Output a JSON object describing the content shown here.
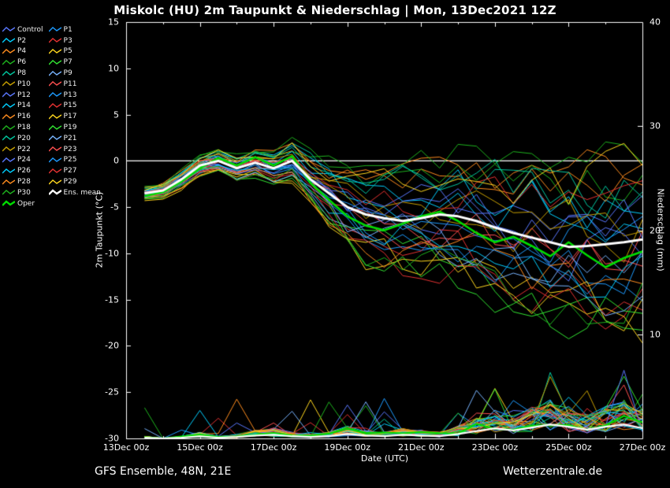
{
  "title": "Miskolc  (HU)  2m Taupunkt & Niederschlag | Mon, 13Dec2021 12Z",
  "footer": {
    "left": "GFS Ensemble, 48N, 21E",
    "right": "Wetterzentrale.de"
  },
  "chart_data": {
    "type": "line",
    "xlabel": "Date (UTC)",
    "ylabel_left": "2m Taupunkt (°C)",
    "ylabel_right": "Niederschlag (mm)",
    "ylim_left": [
      -30,
      15
    ],
    "yticks_left": [
      15,
      10,
      5,
      0,
      -5,
      -10,
      -15,
      -20,
      -25,
      -30
    ],
    "ylim_right": [
      0,
      40
    ],
    "yticks_right": [
      40,
      30,
      20,
      10
    ],
    "zero_line": 0,
    "x_range_hours": [
      0,
      336
    ],
    "x_ticks": [
      {
        "hour": 0,
        "label": "13Dec 00z"
      },
      {
        "hour": 48,
        "label": "15Dec 00z"
      },
      {
        "hour": 96,
        "label": "17Dec 00z"
      },
      {
        "hour": 144,
        "label": "19Dec 00z"
      },
      {
        "hour": 192,
        "label": "21Dec 00z"
      },
      {
        "hour": 240,
        "label": "23Dec 00z"
      },
      {
        "hour": 288,
        "label": "25Dec 00z"
      },
      {
        "hour": 336,
        "label": "27Dec 00z"
      }
    ],
    "x_hours": [
      12,
      24,
      36,
      48,
      60,
      72,
      84,
      96,
      108,
      120,
      132,
      144,
      156,
      168,
      180,
      192,
      204,
      216,
      228,
      240,
      252,
      264,
      276,
      288,
      300,
      312,
      324,
      336
    ],
    "series": {
      "ens_mean": {
        "label": "Ens. mean",
        "color": "#ffffff",
        "temp": [
          -3.5,
          -3.2,
          -2.0,
          -0.5,
          0.0,
          -0.8,
          -0.2,
          -0.8,
          0.0,
          -2.0,
          -3.5,
          -5.0,
          -5.8,
          -6.2,
          -6.5,
          -6.2,
          -5.8,
          -6.0,
          -6.5,
          -7.2,
          -7.8,
          -8.3,
          -8.8,
          -9.3,
          -9.2,
          -9.0,
          -8.8,
          -8.5
        ]
      },
      "oper": {
        "label": "Oper",
        "color": "#00dc00",
        "temp": [
          -3.8,
          -3.4,
          -2.2,
          -0.8,
          0.3,
          -0.5,
          0.4,
          -0.5,
          0.5,
          -2.4,
          -4.2,
          -6.0,
          -7.0,
          -7.5,
          -6.8,
          -6.0,
          -5.5,
          -6.5,
          -7.8,
          -8.8,
          -8.2,
          -9.2,
          -10.3,
          -8.8,
          -10.2,
          -11.5,
          -10.5,
          -9.8
        ]
      },
      "members": [
        {
          "name": "Control",
          "color": "#5a78ff",
          "dev": 0.1
        },
        {
          "name": "P1",
          "color": "#1e9bff",
          "dev": -0.3
        },
        {
          "name": "P2",
          "color": "#00cfff",
          "dev": 0.5
        },
        {
          "name": "P3",
          "color": "#e63232",
          "dev": -0.7
        },
        {
          "name": "P4",
          "color": "#ff8c1e",
          "dev": 0.9
        },
        {
          "name": "P5",
          "color": "#ffd71e",
          "dev": -1.1
        },
        {
          "name": "P6",
          "color": "#1eb41e",
          "dev": 1.1
        },
        {
          "name": "P7",
          "color": "#32e632",
          "dev": -0.9
        },
        {
          "name": "P8",
          "color": "#00c8a0",
          "dev": 0.7
        },
        {
          "name": "P9",
          "color": "#78b4ff",
          "dev": -0.5
        },
        {
          "name": "P10",
          "color": "#c8a000",
          "dev": 0.3
        },
        {
          "name": "P11",
          "color": "#ff5050",
          "dev": -0.1
        },
        {
          "name": "P12",
          "color": "#5a78ff",
          "dev": 0.2
        },
        {
          "name": "P13",
          "color": "#1e9bff",
          "dev": -0.4
        },
        {
          "name": "P14",
          "color": "#00cfff",
          "dev": 0.6
        },
        {
          "name": "P15",
          "color": "#e63232",
          "dev": -0.8
        },
        {
          "name": "P16",
          "color": "#ff8c1e",
          "dev": 1.0
        },
        {
          "name": "P17",
          "color": "#ffd71e",
          "dev": -1.2
        },
        {
          "name": "P18",
          "color": "#1eb41e",
          "dev": 1.2
        },
        {
          "name": "P19",
          "color": "#32e632",
          "dev": -1.0
        },
        {
          "name": "P20",
          "color": "#00c8a0",
          "dev": 0.8
        },
        {
          "name": "P21",
          "color": "#78b4ff",
          "dev": -0.6
        },
        {
          "name": "P22",
          "color": "#c8a000",
          "dev": 0.4
        },
        {
          "name": "P23",
          "color": "#ff5050",
          "dev": -0.2
        },
        {
          "name": "P24",
          "color": "#5a78ff",
          "dev": 0.0
        },
        {
          "name": "P25",
          "color": "#1e9bff",
          "dev": 0.15
        },
        {
          "name": "P26",
          "color": "#00cfff",
          "dev": -0.35
        },
        {
          "name": "P27",
          "color": "#e63232",
          "dev": 0.55
        },
        {
          "name": "P28",
          "color": "#ff8c1e",
          "dev": -0.75
        },
        {
          "name": "P29",
          "color": "#ffd71e",
          "dev": 0.95
        },
        {
          "name": "P30",
          "color": "#1eb41e",
          "dev": -0.95
        }
      ],
      "spread": [
        0.6,
        0.7,
        0.8,
        0.9,
        1.0,
        1.1,
        1.2,
        1.3,
        1.5,
        2.0,
        2.6,
        3.2,
        3.8,
        4.2,
        4.6,
        5.0,
        5.2,
        5.5,
        5.7,
        6.0,
        6.2,
        6.5,
        6.6,
        6.8,
        7.0,
        7.0,
        7.0,
        7.0
      ],
      "precip_mean": [
        0.1,
        0.0,
        0.1,
        0.3,
        0.1,
        0.2,
        0.4,
        0.5,
        0.3,
        0.2,
        0.3,
        0.6,
        0.4,
        0.3,
        0.5,
        0.4,
        0.3,
        0.6,
        1.0,
        1.4,
        1.1,
        1.5,
        1.9,
        1.6,
        1.2,
        1.6,
        1.9,
        1.4
      ]
    },
    "legend_note": "grid_off, black_background, legend top-left two columns"
  }
}
